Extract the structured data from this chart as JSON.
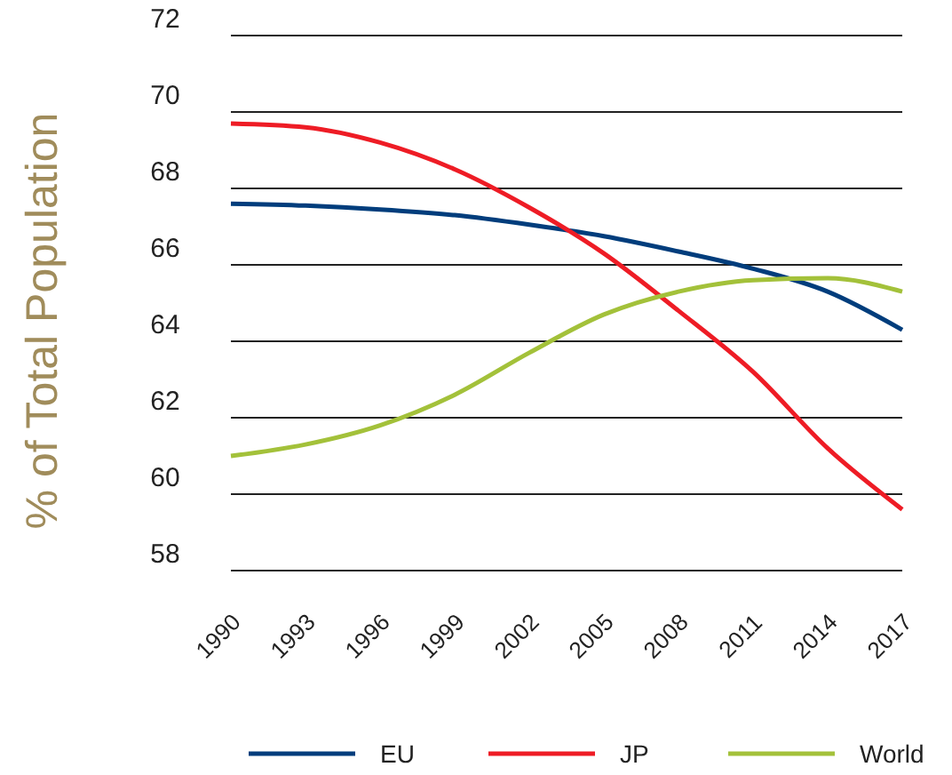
{
  "chart_data": {
    "type": "line",
    "ylabel": "% of Total Population",
    "x": [
      1990,
      1993,
      1996,
      1999,
      2002,
      2005,
      2008,
      2011,
      2014,
      2017
    ],
    "xlim": [
      1990,
      2017
    ],
    "xticks": [
      1990,
      1993,
      1996,
      1999,
      2002,
      2005,
      2008,
      2011,
      2014,
      2017
    ],
    "ylim": [
      58,
      72
    ],
    "yticks": [
      58,
      60,
      62,
      64,
      66,
      68,
      70,
      72
    ],
    "grid": "y",
    "legend": "bottom",
    "marker": "none",
    "line_style": "solid",
    "series": [
      {
        "name": "EU",
        "color": "#003d7c",
        "values": [
          67.6,
          67.55,
          67.45,
          67.3,
          67.05,
          66.75,
          66.35,
          65.9,
          65.3,
          64.3
        ]
      },
      {
        "name": "JP",
        "color": "#ee1c25",
        "values": [
          69.7,
          69.6,
          69.2,
          68.5,
          67.5,
          66.3,
          64.8,
          63.2,
          61.2,
          59.6
        ]
      },
      {
        "name": "World",
        "color": "#a3c13a",
        "values": [
          61.0,
          61.3,
          61.8,
          62.6,
          63.7,
          64.7,
          65.3,
          65.6,
          65.65,
          65.3
        ]
      }
    ]
  }
}
